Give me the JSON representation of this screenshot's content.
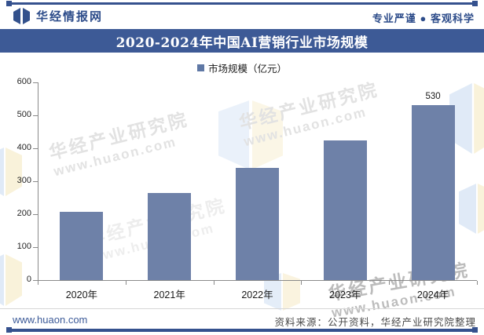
{
  "header": {
    "brand": "华经情报网",
    "slogan": "专业严谨 ● 客观科学"
  },
  "title": "2020-2024年中国AI营销行业市场规模",
  "chart_data": {
    "type": "bar",
    "title": "2020-2024年中国AI营销行业市场规模",
    "series_name": "市场规模（亿元）",
    "categories": [
      "2020年",
      "2021年",
      "2022年",
      "2023年",
      "2024年"
    ],
    "values": [
      207,
      265,
      340,
      425,
      530
    ],
    "bar_labels": [
      "",
      "",
      "",
      "",
      "530"
    ],
    "ylim": [
      0,
      600
    ],
    "ytick_step": 100,
    "grid": false,
    "legend_position": "top",
    "bar_color": "#6e81a8"
  },
  "watermark": {
    "line1": "华经产业研究院",
    "line2": "www.huaon.com"
  },
  "footer": {
    "site": "www.huaon.com",
    "source": "资料来源：公开资料，华经产业研究院整理"
  },
  "colors": {
    "accent": "#3d5a96",
    "bar": "#6e81a8"
  }
}
